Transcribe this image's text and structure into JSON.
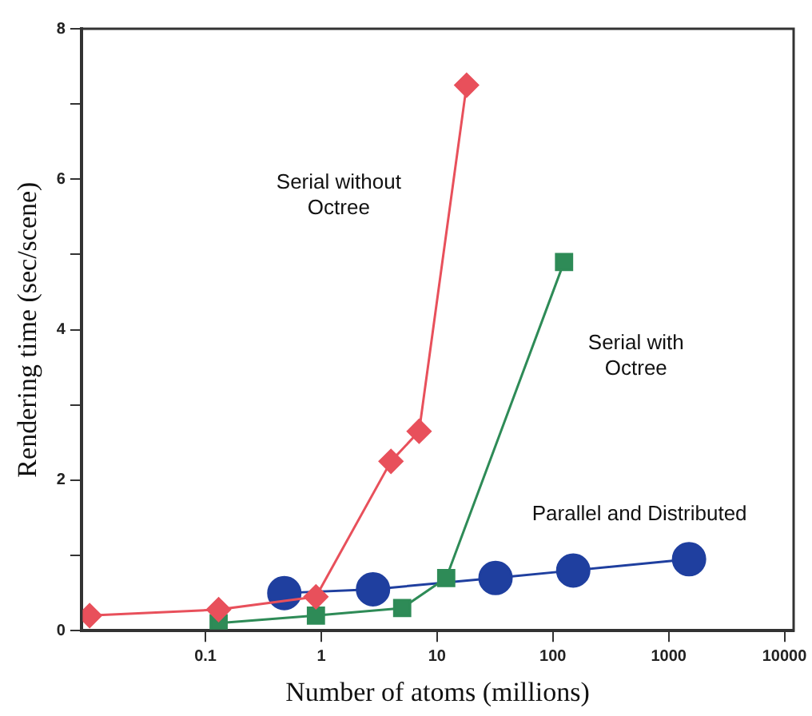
{
  "chart_data": {
    "type": "line",
    "xlabel": "Number of atoms (millions)",
    "ylabel": "Rendering time (sec/scene)",
    "log": "x",
    "xlim": [
      0.0085,
      12000
    ],
    "xticks": [
      0.1,
      1,
      10,
      100,
      1000,
      10000
    ],
    "ylim": [
      0,
      8
    ],
    "yticks": [
      0,
      {
        "value": 1,
        "label": null
      },
      2,
      {
        "value": 3,
        "label": null
      },
      4,
      {
        "value": 5,
        "label": null
      },
      6,
      {
        "value": 7,
        "label": null
      },
      8
    ],
    "grid": false,
    "legend": false,
    "series": [
      {
        "name": "Serial without\nOctree",
        "color": "#e8505b",
        "marker": "diamond",
        "x": [
          0.01,
          0.13,
          0.9,
          4,
          7,
          18
        ],
        "values": [
          0.2,
          0.28,
          0.45,
          2.25,
          2.65,
          7.25
        ]
      },
      {
        "name": "Serial with\nOctree",
        "color": "#2e8b57",
        "marker": "square",
        "x": [
          0.13,
          0.9,
          5,
          12,
          125
        ],
        "values": [
          0.1,
          0.2,
          0.3,
          0.7,
          4.9
        ]
      },
      {
        "name": "Parallel and Distributed",
        "color": "#1f3f9f",
        "marker": "circle",
        "x": [
          0.48,
          2.8,
          32,
          150,
          1500
        ],
        "values": [
          0.5,
          0.55,
          0.7,
          0.8,
          0.95
        ]
      }
    ]
  }
}
